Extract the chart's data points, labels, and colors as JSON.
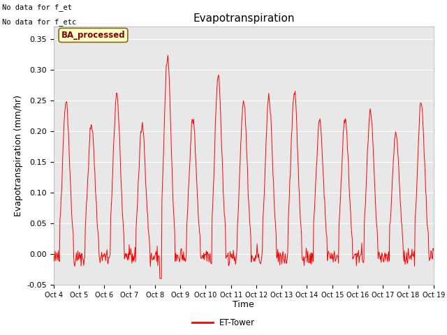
{
  "title": "Evapotranspiration",
  "ylabel": "Evapotranspiration (mm/hr)",
  "xlabel": "Time",
  "ylim": [
    -0.05,
    0.37
  ],
  "yticks": [
    -0.05,
    0.0,
    0.05,
    0.1,
    0.15,
    0.2,
    0.25,
    0.3,
    0.35
  ],
  "line_color": "#ff0000",
  "bg_color": "#e8e8e8",
  "fig_color": "#ffffff",
  "text_no_data": [
    "No data for f_et",
    "No data for f_etc"
  ],
  "ba_label": "BA_processed",
  "legend_label": "ET-Tower",
  "x_tick_labels": [
    "Oct 4",
    "Oct 5",
    "Oct 6",
    "Oct 7",
    "Oct 8",
    "Oct 9",
    "Oct 10",
    "Oct 11",
    "Oct 12",
    "Oct 13",
    "Oct 14",
    "Oct 15",
    "Oct 16",
    "Oct 17",
    "Oct 18",
    "Oct 19"
  ],
  "title_fontsize": 11,
  "axis_fontsize": 9,
  "tick_fontsize": 8,
  "peak_heights": [
    0.25,
    0.21,
    0.26,
    0.21,
    0.32,
    0.22,
    0.29,
    0.25,
    0.255,
    0.265,
    0.22,
    0.22,
    0.23,
    0.195,
    0.245,
    0.26
  ],
  "n_days": 15,
  "n_per_day": 48
}
